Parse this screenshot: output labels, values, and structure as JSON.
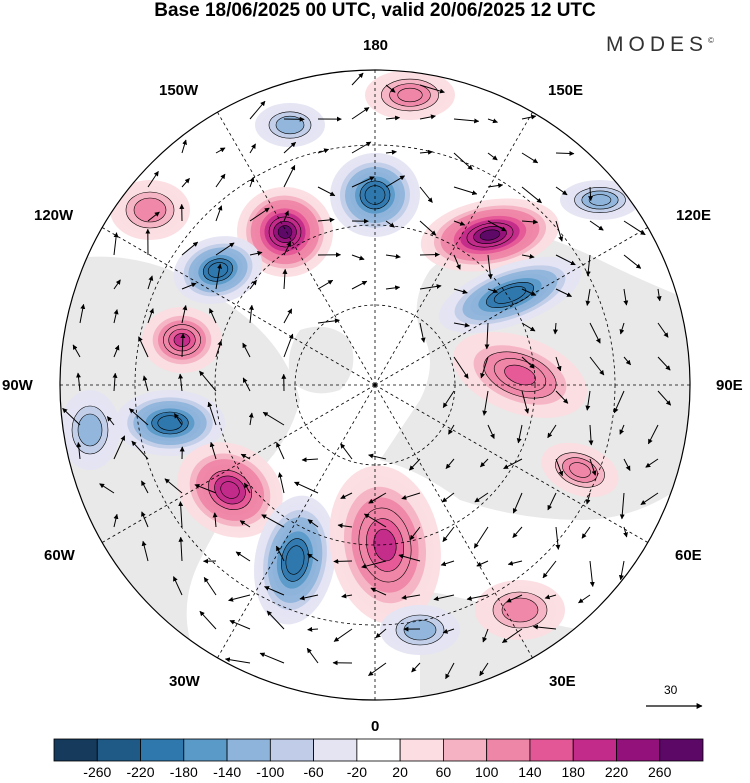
{
  "title": "Base 18/06/2025 00 UTC, valid 20/06/2025 12 UTC",
  "brand": "MODES",
  "brand_mark": "©",
  "labels": {
    "lon_180": "180",
    "lon_150W": "150W",
    "lon_150E": "150E",
    "lon_120W": "120W",
    "lon_120E": "120E",
    "lon_90W": "90W",
    "lon_90E": "90E",
    "lon_60W": "60W",
    "lon_60E": "60E",
    "lon_30W": "30W",
    "lon_30E": "30E",
    "lon_0": "0"
  },
  "reference_vector": "30",
  "colorbar": {
    "ticks": [
      "-260",
      "-220",
      "-180",
      "-140",
      "-100",
      "-60",
      "-20",
      "20",
      "60",
      "100",
      "140",
      "180",
      "220",
      "260"
    ],
    "colors": [
      "#163a5c",
      "#1f5a86",
      "#2f78ad",
      "#5a9ac8",
      "#8fb4db",
      "#c1cde8",
      "#e4e4f3",
      "#ffffff",
      "#fbdde2",
      "#f4b2c2",
      "#ee86a8",
      "#e45796",
      "#c32b8a",
      "#93117a",
      "#5b0866"
    ]
  },
  "map": {
    "projection": "north polar stereographic",
    "land_color": "#e9e9e9",
    "ocean_color": "#ffffff"
  }
}
